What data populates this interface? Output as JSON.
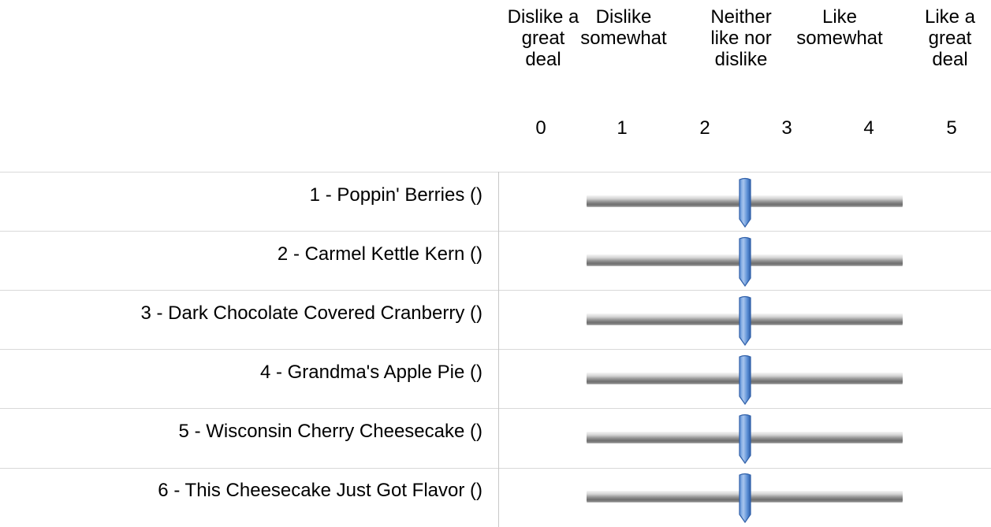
{
  "scale": {
    "headers": [
      "Dislike a\ngreat\ndeal",
      "Dislike\nsomewhat",
      "Neither\nlike nor\ndislike",
      "Like\nsomewhat",
      "Like a\ngreat\ndeal"
    ],
    "ticks": [
      "0",
      "1",
      "2",
      "3",
      "4",
      "5"
    ],
    "min": 0,
    "max": 5
  },
  "items": [
    {
      "label": "1 - Poppin' Berries ()",
      "value": 2.5
    },
    {
      "label": "2 - Carmel Kettle Kern ()",
      "value": 2.5
    },
    {
      "label": "3 - Dark Chocolate Covered Cranberry ()",
      "value": 2.5
    },
    {
      "label": "4 - Grandma's Apple Pie ()",
      "value": 2.5
    },
    {
      "label": "5 - Wisconsin Cherry Cheesecake ()",
      "value": 2.5
    },
    {
      "label": "6 - This Cheesecake Just Got Flavor ()",
      "value": 2.5
    }
  ],
  "colors": {
    "handle_light": "#a9c6ee",
    "handle_mid": "#5b8fd6",
    "handle_dark": "#2f5fa8"
  },
  "icons": {
    "handle": "slider-handle-icon"
  }
}
